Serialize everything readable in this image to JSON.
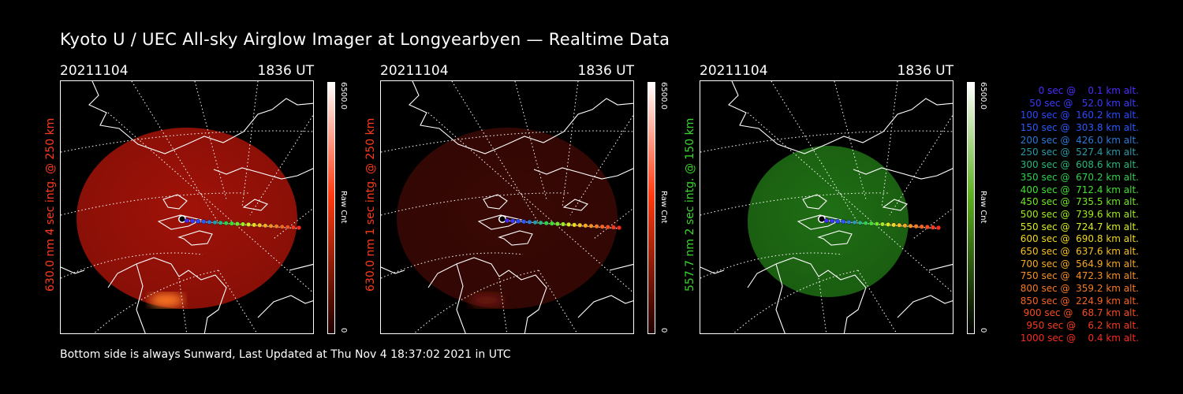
{
  "title": "Kyoto U / UEC All-sky Airglow Imager at Longyearbyen — Realtime Data",
  "panels": [
    {
      "date": "20211104",
      "time": "1836 UT",
      "ylabel": "630.0 nm 4 sec intg. @ 250 km",
      "label_color": "#ff3a1a",
      "cbar_max": "6500.0",
      "cbar_min": "0",
      "cbar_unit": "Raw Cnt",
      "image_color": "#a01208",
      "bright_color": "#ff7a28",
      "cbar_top": "#ffffff",
      "cbar_mid": "#ff3a10",
      "cbar_bot": "#200000"
    },
    {
      "date": "20211104",
      "time": "1836 UT",
      "ylabel": "630.0 nm 1 sec intg. @ 250 km",
      "label_color": "#ff3a1a",
      "cbar_max": "6500.0",
      "cbar_min": "0",
      "cbar_unit": "Raw Cnt",
      "image_color": "#3a0804",
      "bright_color": "#6a1808",
      "cbar_top": "#ffffff",
      "cbar_mid": "#ff3a10",
      "cbar_bot": "#200000"
    },
    {
      "date": "20211104",
      "time": "1836 UT",
      "ylabel": "557.7 nm 2 sec intg. @ 150 km",
      "label_color": "#39d62b",
      "cbar_max": "6500.0",
      "cbar_min": "0",
      "cbar_unit": "Raw Cnt",
      "image_color": "#1f6e14",
      "bright_color": "#e0d070",
      "cbar_top": "#ffffff",
      "cbar_mid": "#5ab21c",
      "cbar_bot": "#000000"
    }
  ],
  "legend": [
    {
      "text": "   0 sec @    0.1 km alt.",
      "color": "#4a2cff"
    },
    {
      "text": "  50 sec @   52.0 km alt.",
      "color": "#3a3aff"
    },
    {
      "text": " 100 sec @  160.2 km alt.",
      "color": "#2a4aff"
    },
    {
      "text": " 150 sec @  303.8 km alt.",
      "color": "#2a5aff"
    },
    {
      "text": " 200 sec @  426.0 km alt.",
      "color": "#2a7ad8"
    },
    {
      "text": " 250 sec @  527.4 km alt.",
      "color": "#2a9aa8"
    },
    {
      "text": " 300 sec @  608.6 km alt.",
      "color": "#28b87a"
    },
    {
      "text": " 350 sec @  670.2 km alt.",
      "color": "#30d04a"
    },
    {
      "text": " 400 sec @  712.4 km alt.",
      "color": "#40e030"
    },
    {
      "text": " 450 sec @  735.5 km alt.",
      "color": "#70e828"
    },
    {
      "text": " 500 sec @  739.6 km alt.",
      "color": "#a0ec20"
    },
    {
      "text": " 550 sec @  724.7 km alt.",
      "color": "#d8ec20"
    },
    {
      "text": " 600 sec @  690.8 km alt.",
      "color": "#f0d820"
    },
    {
      "text": " 650 sec @  637.6 km alt.",
      "color": "#f8c020"
    },
    {
      "text": " 700 sec @  564.9 km alt.",
      "color": "#f8a820"
    },
    {
      "text": " 750 sec @  472.3 km alt.",
      "color": "#f89020"
    },
    {
      "text": " 800 sec @  359.2 km alt.",
      "color": "#f87a20"
    },
    {
      "text": " 850 sec @  224.9 km alt.",
      "color": "#f86420"
    },
    {
      "text": " 900 sec @   68.7 km alt.",
      "color": "#f84e20"
    },
    {
      "text": " 950 sec @    6.2 km alt.",
      "color": "#f83a20"
    },
    {
      "text": "1000 sec @    0.4 km alt.",
      "color": "#f82a20"
    }
  ],
  "footer": "Bottom side is always Sunward, Last Updated at Thu Nov  4 18:37:02 2021 in UTC"
}
